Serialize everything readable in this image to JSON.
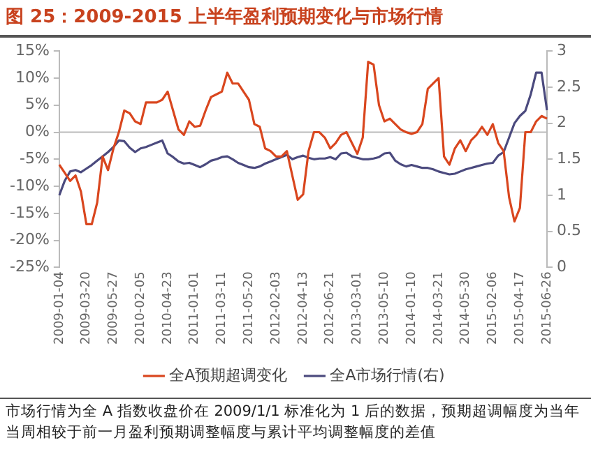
{
  "chart_data": {
    "type": "line",
    "title": "图 25：2009-2015 上半年盈利预期变化与市场行情",
    "categories": [
      "2009-01-04",
      null,
      null,
      null,
      null,
      "2009-03-20",
      null,
      null,
      null,
      null,
      "2009-05-27",
      null,
      null,
      null,
      null,
      "2010-02-05",
      null,
      null,
      null,
      null,
      "2010-04-23",
      null,
      null,
      null,
      null,
      "2011-01-01",
      null,
      null,
      null,
      null,
      "2011-03-11",
      null,
      null,
      null,
      null,
      "2011-05-20",
      null,
      null,
      null,
      null,
      "2012-02-03",
      null,
      null,
      null,
      null,
      "2012-04-13",
      null,
      null,
      null,
      null,
      "2012-06-21",
      null,
      null,
      null,
      null,
      "2013-03-01",
      null,
      null,
      null,
      null,
      "2013-05-10",
      null,
      null,
      null,
      null,
      "2014-01-10",
      null,
      null,
      null,
      null,
      "2014-03-21",
      null,
      null,
      null,
      null,
      "2014-05-30",
      null,
      null,
      null,
      null,
      "2015-02-06",
      null,
      null,
      null,
      null,
      "2015-04-17",
      null,
      null,
      null,
      null,
      "2015-06-26"
    ],
    "series": [
      {
        "name": "全A预期超调变化",
        "color": "#d9461e",
        "values": [
          -6,
          -7.5,
          -9,
          -8,
          -11,
          -17,
          -17,
          -13,
          -4.5,
          -7,
          -3,
          0,
          4,
          3.5,
          2,
          1.5,
          5.5,
          5.5,
          5.5,
          6,
          7.5,
          4,
          0.5,
          -0.5,
          2,
          1,
          1.2,
          4,
          6.5,
          7,
          7.5,
          11,
          9,
          9,
          7.5,
          6,
          1.5,
          1,
          -3,
          -3.5,
          -4.5,
          -4.5,
          -3.5,
          -8,
          -12.5,
          -11.5,
          -3.5,
          0,
          0,
          -1,
          -3,
          -2,
          -0.5,
          0,
          -2,
          -4,
          -1,
          13,
          12.5,
          5,
          2,
          2.5,
          1.5,
          0.5,
          0,
          -0.3,
          0,
          1.5,
          8,
          9,
          10,
          -4.5,
          -6,
          -3,
          -1.5,
          -3.5,
          -1.5,
          -0.5,
          1,
          -0.5,
          1.5,
          -2,
          -3.5,
          -12,
          -16.5,
          -14,
          0,
          0,
          2,
          3,
          2.5
        ]
      },
      {
        "name": "全A市场行情(右)",
        "color": "#4b4a7e",
        "axis": "y2",
        "values": [
          1,
          1.2,
          1.33,
          1.35,
          1.32,
          1.37,
          1.42,
          1.48,
          1.54,
          1.6,
          1.67,
          1.76,
          1.75,
          1.66,
          1.6,
          1.65,
          1.67,
          1.7,
          1.73,
          1.76,
          1.58,
          1.53,
          1.47,
          1.44,
          1.45,
          1.42,
          1.39,
          1.43,
          1.48,
          1.5,
          1.53,
          1.54,
          1.5,
          1.45,
          1.42,
          1.39,
          1.38,
          1.4,
          1.44,
          1.47,
          1.5,
          1.53,
          1.56,
          1.5,
          1.53,
          1.55,
          1.52,
          1.5,
          1.51,
          1.51,
          1.53,
          1.5,
          1.58,
          1.59,
          1.54,
          1.52,
          1.5,
          1.5,
          1.51,
          1.53,
          1.58,
          1.59,
          1.48,
          1.43,
          1.4,
          1.42,
          1.4,
          1.38,
          1.38,
          1.36,
          1.33,
          1.31,
          1.29,
          1.3,
          1.33,
          1.36,
          1.38,
          1.4,
          1.42,
          1.44,
          1.45,
          1.55,
          1.6,
          1.8,
          2,
          2.1,
          2.17,
          2.4,
          2.7,
          2.7,
          2.18
        ]
      }
    ],
    "ylim": [
      -25,
      15
    ],
    "yticks": [
      {
        "value": -25,
        "label": "-25%"
      },
      {
        "value": -20,
        "label": "-20%"
      },
      {
        "value": -15,
        "label": "-15%"
      },
      {
        "value": -10,
        "label": "-10%"
      },
      {
        "value": -5,
        "label": "-5%"
      },
      {
        "value": 0,
        "label": "0%"
      },
      {
        "value": 5,
        "label": "5%"
      },
      {
        "value": 10,
        "label": "10%"
      },
      {
        "value": 15,
        "label": "15%"
      }
    ],
    "y2lim": [
      0,
      3
    ],
    "y2ticks": [
      0,
      0.5,
      1,
      1.5,
      2,
      2.5,
      3
    ],
    "ref_lines": [
      {
        "axis": "y",
        "value": 0,
        "color": "#bbbbbb"
      }
    ],
    "grid": false,
    "legend": "bottom",
    "marker": "none",
    "line_style": "solid",
    "annotations": [
      "市场行情为全 A 指数收盘价在 2009/1/1 标准化为 1 后的数据，预期超调幅度为当年当周相较于前一月盈利预期调整幅度与累计平均调整幅度的差值"
    ]
  }
}
